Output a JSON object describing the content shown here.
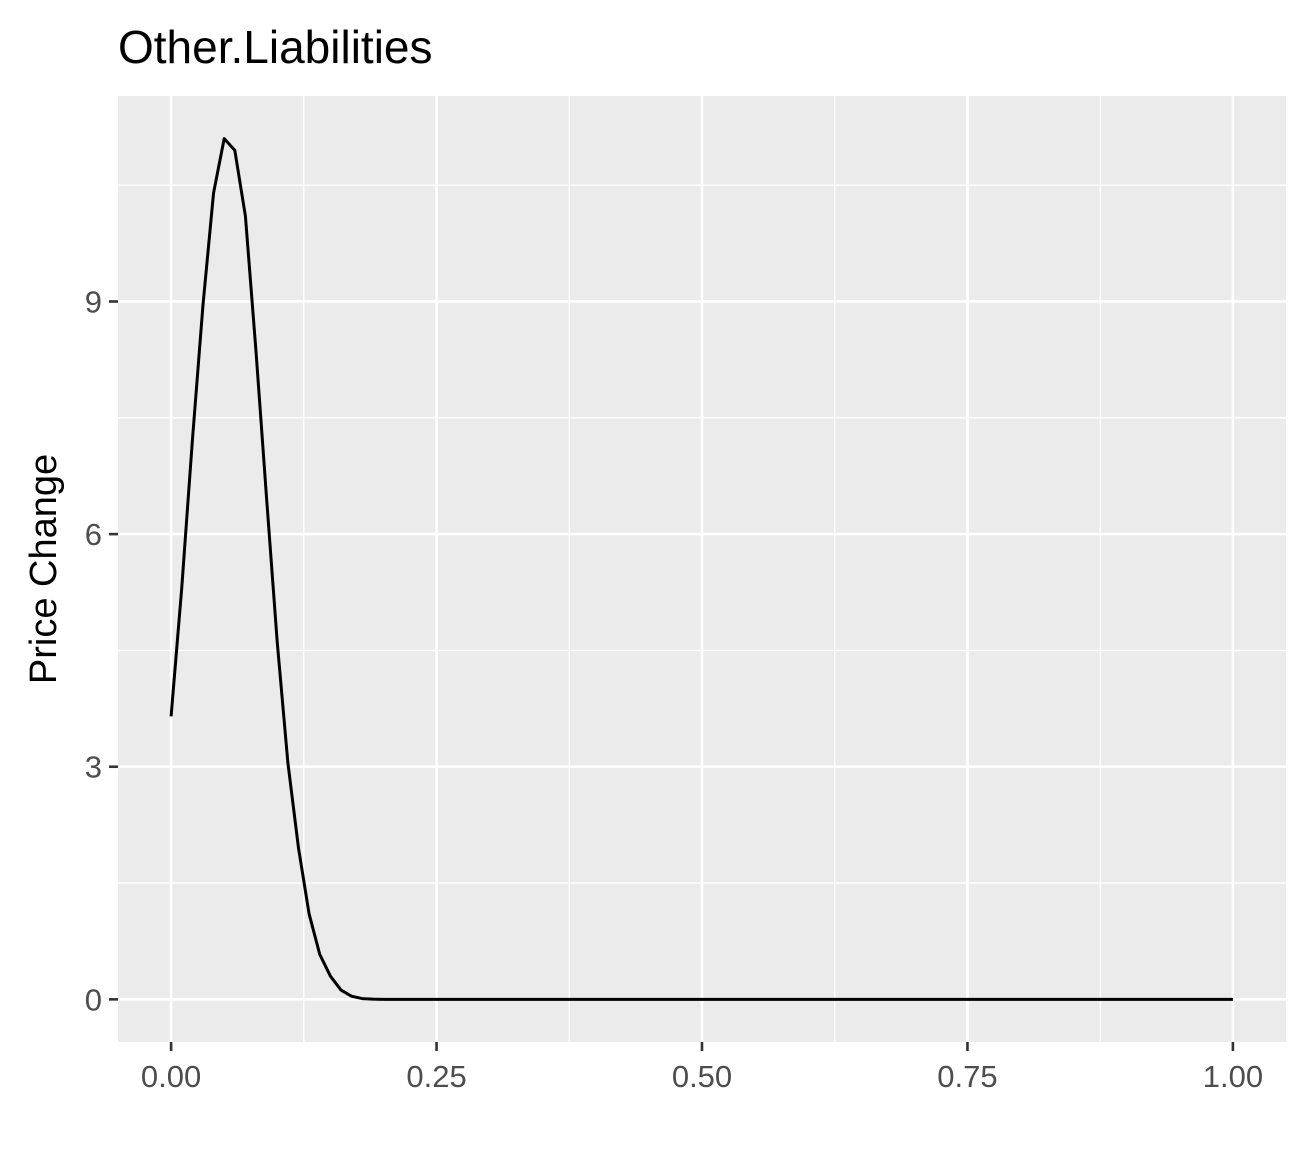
{
  "chart_data": {
    "type": "line",
    "title": "Other.Liabilities",
    "xlabel": "",
    "ylabel": "Price Change",
    "xlim": [
      -0.05,
      1.05
    ],
    "ylim": [
      -0.55,
      11.65
    ],
    "grid": true,
    "legend": "none",
    "x_ticks": [
      0,
      0.25,
      0.5,
      0.75,
      1
    ],
    "x_tick_labels": [
      "0.00",
      "0.25",
      "0.50",
      "0.75",
      "1.00"
    ],
    "y_ticks": [
      0,
      3,
      6,
      9
    ],
    "y_tick_labels": [
      "0",
      "3",
      "6",
      "9"
    ],
    "series": [
      {
        "x": [
          0,
          0.01,
          0.02,
          0.03,
          0.04,
          0.05,
          0.06,
          0.07,
          0.08,
          0.09,
          0.1,
          0.11,
          0.12,
          0.13,
          0.14,
          0.15,
          0.16,
          0.17,
          0.18,
          0.19,
          0.2,
          0.25,
          0.3,
          0.4,
          0.5,
          0.6,
          0.7,
          0.8,
          0.9,
          1.0
        ],
        "y": [
          3.65,
          5.3,
          7.2,
          8.95,
          10.4,
          11.1,
          10.95,
          10.1,
          8.35,
          6.45,
          4.6,
          3.05,
          1.95,
          1.1,
          0.58,
          0.3,
          0.12,
          0.04,
          0.01,
          0.003,
          0,
          0,
          0,
          0,
          0,
          0,
          0,
          0,
          0,
          0
        ]
      }
    ],
    "colors": {
      "panel_background": "#ebebeb",
      "grid_major": "#ffffff",
      "grid_minor": "#ffffff",
      "line": "#000000",
      "tick_text": "#4d4d4d"
    }
  }
}
